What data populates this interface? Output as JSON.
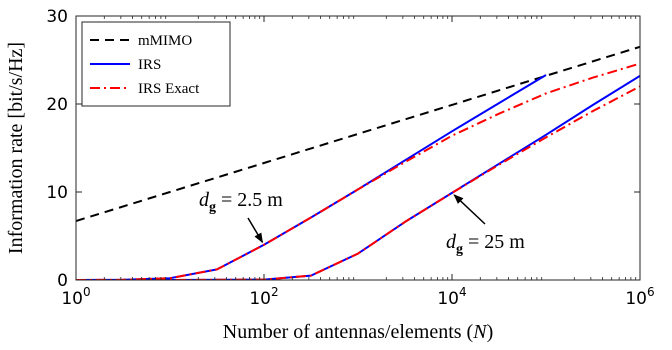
{
  "chart_data": {
    "type": "line",
    "xlabel": "Number of antennas/elements (N)",
    "ylabel": "Information rate [bit/s/Hz]",
    "xscale": "log",
    "xlim": [
      1,
      1000000
    ],
    "ylim": [
      0,
      30
    ],
    "xticks": [
      1,
      100,
      10000,
      1000000
    ],
    "xtick_labels": [
      {
        "base": "10",
        "exp": "0"
      },
      {
        "base": "10",
        "exp": "2"
      },
      {
        "base": "10",
        "exp": "4"
      },
      {
        "base": "10",
        "exp": "6"
      }
    ],
    "yticks": [
      0,
      10,
      20,
      30
    ],
    "ytick_labels": [
      "0",
      "10",
      "20",
      "30"
    ],
    "grid": false,
    "legend_position": "top-left",
    "legend": [
      "mMIMO",
      "IRS",
      "IRS Exact"
    ],
    "series": [
      {
        "name": "mMIMO",
        "color": "#000000",
        "style": "dashed",
        "x": [
          1,
          10,
          100,
          1000,
          10000,
          100000,
          1000000
        ],
        "y": [
          6.7,
          10.0,
          13.3,
          16.6,
          19.9,
          23.2,
          26.5
        ]
      },
      {
        "name": "IRS",
        "group": "dg=2.5 m",
        "color": "#0000ff",
        "style": "solid",
        "x": [
          1,
          3.16,
          10,
          31.6,
          100,
          316,
          1000,
          3160,
          10000,
          31600,
          100000
        ],
        "y": [
          0.0,
          0.02,
          0.2,
          1.2,
          4.0,
          7.1,
          10.3,
          13.6,
          16.9,
          20.1,
          23.3
        ]
      },
      {
        "name": "IRS Exact",
        "group": "dg=2.5 m",
        "color": "#ff0000",
        "style": "dashdot",
        "x": [
          1,
          3.16,
          10,
          31.6,
          100,
          316,
          1000,
          3160,
          10000,
          31600,
          100000,
          316000,
          1000000
        ],
        "y": [
          0.0,
          0.02,
          0.2,
          1.2,
          4.0,
          7.1,
          10.3,
          13.4,
          16.4,
          18.9,
          21.2,
          23.0,
          24.6
        ]
      },
      {
        "name": "IRS",
        "group": "dg=25 m",
        "color": "#0000ff",
        "style": "solid",
        "x": [
          1,
          10,
          100,
          316,
          1000,
          3160,
          10000,
          31600,
          100000,
          316000,
          1000000
        ],
        "y": [
          0.0,
          0.0,
          0.05,
          0.5,
          3.0,
          6.6,
          9.9,
          13.2,
          16.5,
          19.9,
          23.2
        ]
      },
      {
        "name": "IRS Exact",
        "group": "dg=25 m",
        "color": "#ff0000",
        "style": "dashdot",
        "x": [
          1,
          10,
          100,
          316,
          1000,
          3160,
          10000,
          31600,
          100000,
          316000,
          1000000
        ],
        "y": [
          0.0,
          0.0,
          0.05,
          0.5,
          3.0,
          6.6,
          9.9,
          13.1,
          16.2,
          19.2,
          22.0
        ]
      }
    ],
    "annotations": [
      {
        "text": "dg = 2.5 m",
        "sub": "g",
        "value": "= 2.5 m",
        "arrow_to": {
          "x": 100,
          "y": 4.0
        }
      },
      {
        "text": "dg = 25 m",
        "sub": "g",
        "value": "= 25 m",
        "arrow_to": {
          "x": 10000,
          "y": 9.9
        }
      }
    ]
  }
}
